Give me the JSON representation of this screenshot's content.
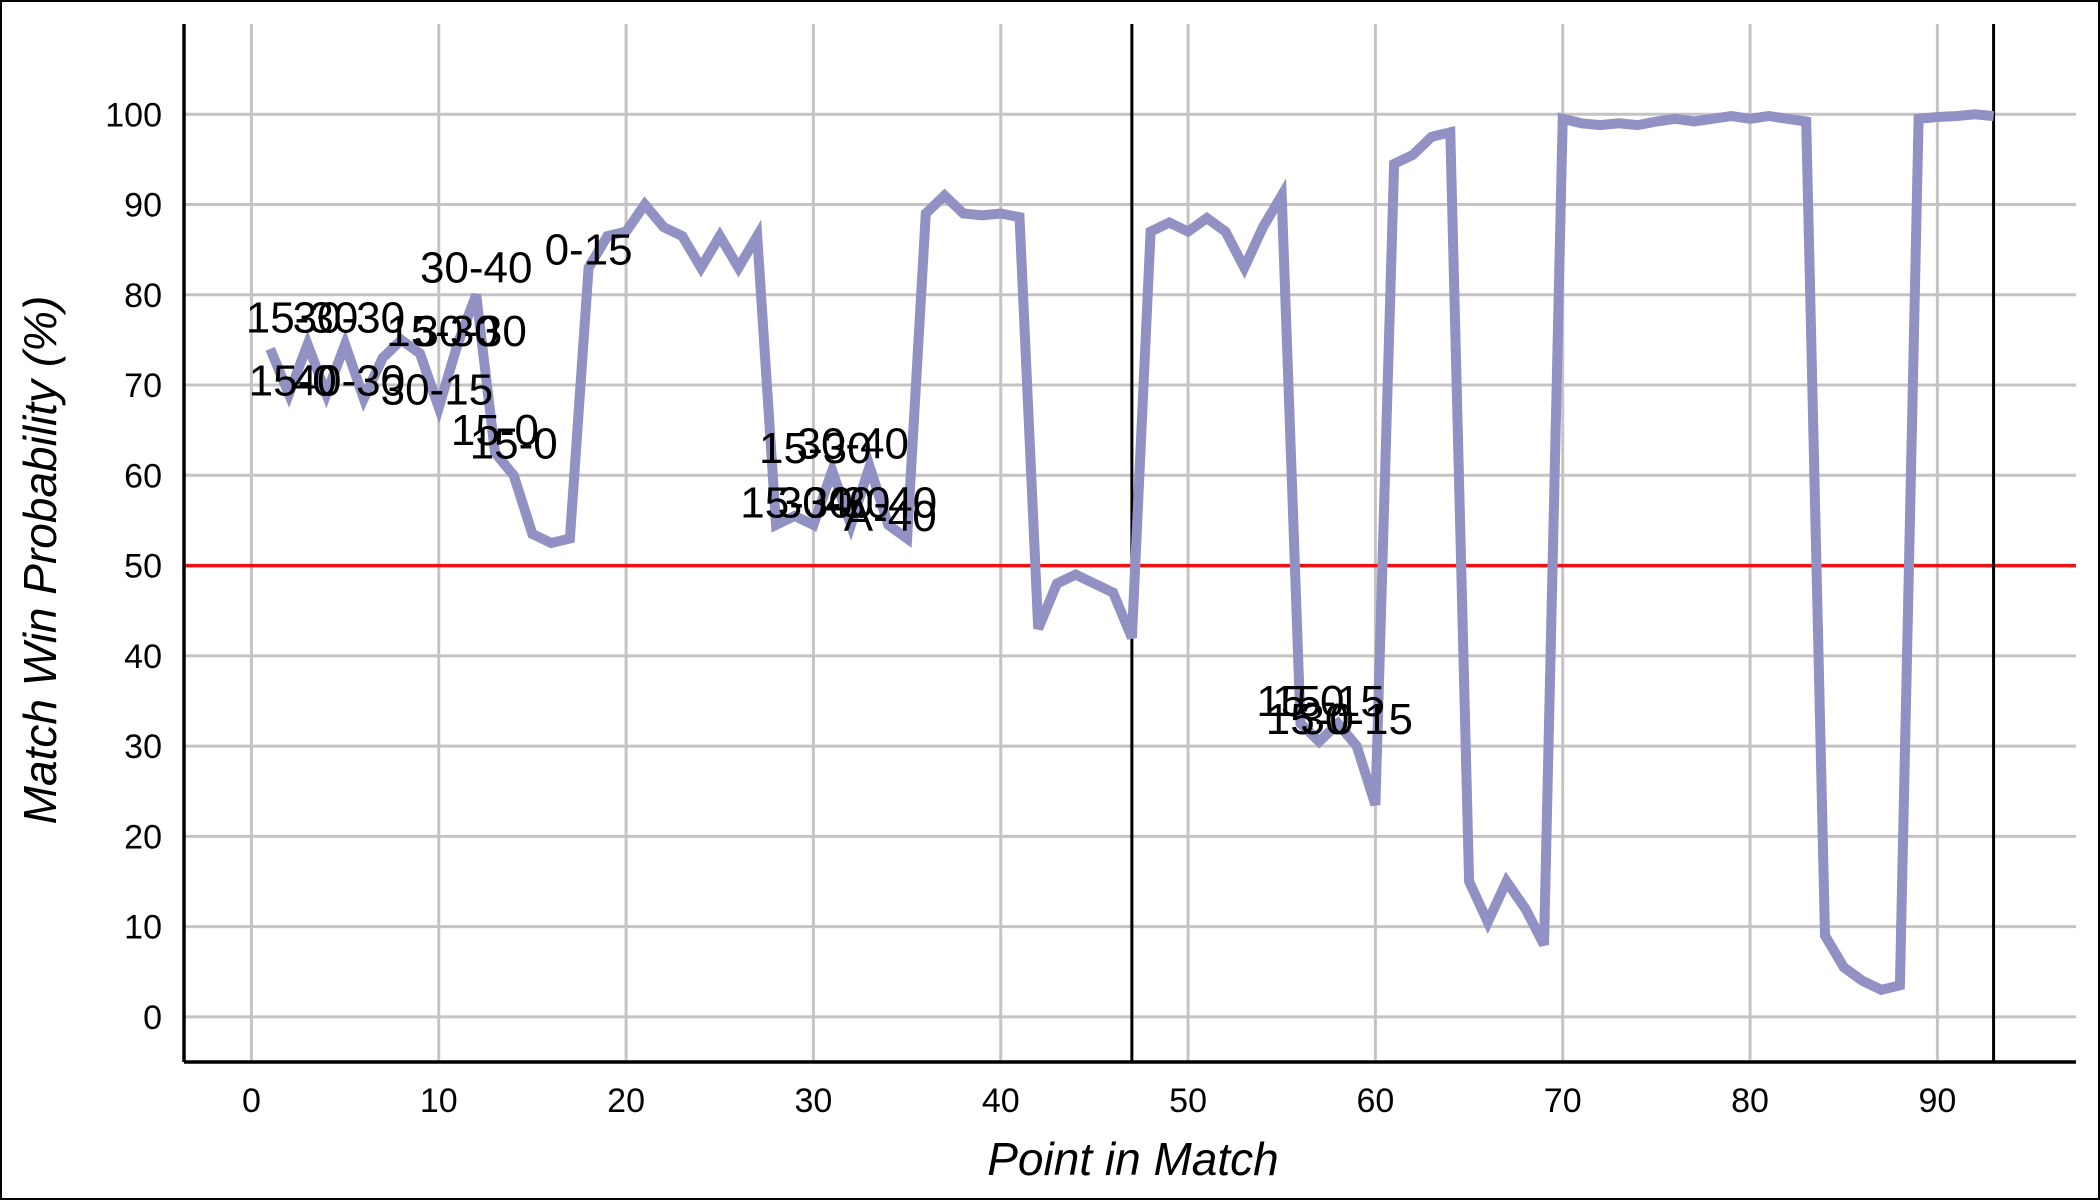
{
  "chart_data": {
    "type": "line",
    "title": "",
    "xlabel": "Point in Match",
    "ylabel": "Match Win Probability (%)",
    "xlim": [
      -3.6,
      97.4
    ],
    "ylim": [
      -5,
      110
    ],
    "x_ticks": [
      0,
      10,
      20,
      30,
      40,
      50,
      60,
      70,
      80,
      90
    ],
    "y_ticks": [
      0,
      10,
      20,
      30,
      40,
      50,
      60,
      70,
      80,
      90,
      100
    ],
    "grid": true,
    "reference_line_y": 50,
    "set_boundaries_x": [
      47,
      93
    ],
    "colors": {
      "series": "#9191c4",
      "reference_line": "#ee1111",
      "grid": "#c4c4c4",
      "boundary": "#000000"
    },
    "series": [
      {
        "x": [
          1,
          2,
          3,
          4,
          5,
          6,
          7,
          8,
          9,
          10,
          11,
          12,
          13,
          14,
          15,
          16,
          17,
          18,
          19,
          20,
          21,
          22,
          23,
          24,
          25,
          26,
          27,
          28,
          29,
          30,
          31,
          32,
          33,
          34,
          35,
          36,
          37,
          38,
          39,
          40,
          41,
          42,
          43,
          44,
          45,
          46,
          47,
          48,
          49,
          50,
          51,
          52,
          53,
          54,
          55,
          56,
          57,
          58,
          59,
          60,
          61,
          62,
          63,
          64,
          65,
          66,
          67,
          68,
          69,
          70,
          71,
          72,
          73,
          74,
          75,
          76,
          77,
          78,
          79,
          80,
          81,
          82,
          83,
          84,
          85,
          86,
          87,
          88,
          89,
          90,
          91,
          92,
          93
        ],
        "values": [
          74,
          69,
          74.5,
          69,
          74.5,
          68.5,
          73,
          75,
          73.5,
          67.5,
          74.5,
          80,
          62.5,
          60,
          53.5,
          52.5,
          53,
          83,
          86.5,
          87,
          90,
          87.5,
          86.5,
          83,
          86.5,
          83,
          86.5,
          54.5,
          55.5,
          54.5,
          60.5,
          54.5,
          61,
          54.5,
          53,
          89,
          91,
          89,
          88.8,
          89,
          88.6,
          43,
          48,
          49,
          48,
          47,
          42,
          87,
          88,
          87,
          88.5,
          87,
          83,
          87.5,
          91,
          32.5,
          30.5,
          32.5,
          30,
          23.5,
          94.5,
          95.5,
          97.5,
          98,
          15,
          10.5,
          15,
          12,
          8,
          99.5,
          99,
          98.8,
          99,
          98.8,
          99.2,
          99.5,
          99.2,
          99.5,
          99.8,
          99.5,
          99.8,
          99.5,
          99.2,
          9,
          5.5,
          4,
          3,
          3.5,
          99.5,
          99.7,
          99.8,
          100,
          99.8
        ]
      }
    ],
    "annotations": [
      {
        "text": "15-30",
        "x": 2.7,
        "y": 77.5
      },
      {
        "text": "30-30",
        "x": 5.2,
        "y": 77.5
      },
      {
        "text": "15-0",
        "x": 2.2,
        "y": 70.5
      },
      {
        "text": "40-30",
        "x": 5.2,
        "y": 70.5
      },
      {
        "text": "30-15",
        "x": 9.9,
        "y": 69.5
      },
      {
        "text": "15-30",
        "x": 10.2,
        "y": 76
      },
      {
        "text": "30-30",
        "x": 11.7,
        "y": 76
      },
      {
        "text": "30-40",
        "x": 12,
        "y": 83
      },
      {
        "text": "0-15",
        "x": 18,
        "y": 85
      },
      {
        "text": "15-0",
        "x": 13,
        "y": 65
      },
      {
        "text": "15-0",
        "x": 14,
        "y": 63.5
      },
      {
        "text": "15-30",
        "x": 30.1,
        "y": 63
      },
      {
        "text": "30-40",
        "x": 32.1,
        "y": 63.5
      },
      {
        "text": "15-30",
        "x": 29.1,
        "y": 57
      },
      {
        "text": "30-30",
        "x": 31.1,
        "y": 57
      },
      {
        "text": "40-40",
        "x": 33.6,
        "y": 57
      },
      {
        "text": "A-40",
        "x": 34.1,
        "y": 55.5
      },
      {
        "text": "15-0",
        "x": 56,
        "y": 35
      },
      {
        "text": "15-15",
        "x": 57.5,
        "y": 35
      },
      {
        "text": "15-0",
        "x": 56.5,
        "y": 33
      },
      {
        "text": "30-15",
        "x": 59,
        "y": 33
      }
    ]
  }
}
